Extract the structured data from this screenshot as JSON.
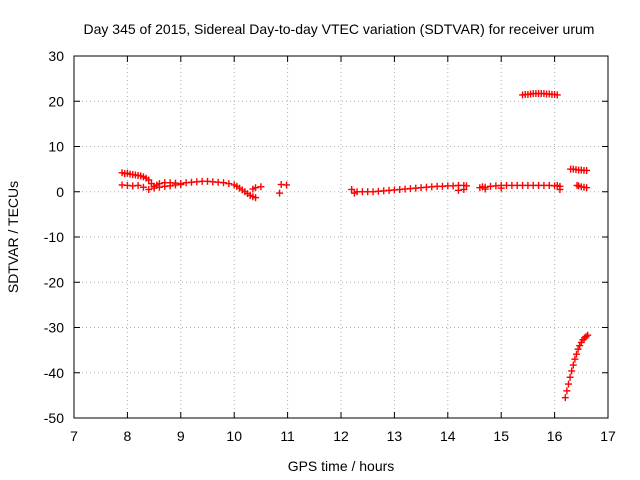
{
  "chart_data": {
    "type": "scatter",
    "title": "Day 345 of 2015, Sidereal Day-to-day VTEC variation (SDTVAR) for receiver urum",
    "xlabel": "GPS time / hours",
    "ylabel": "SDTVAR / TECUs",
    "xlim": [
      7,
      17
    ],
    "ylim": [
      -50,
      30
    ],
    "xticks": [
      "7",
      "8",
      "9",
      "10",
      "11",
      "12",
      "13",
      "14",
      "15",
      "16",
      "17"
    ],
    "yticks": [
      "30",
      "20",
      "10",
      "0",
      "-10",
      "-20",
      "-30",
      "-40",
      "-50"
    ],
    "grid": true,
    "marker": "+",
    "color": "#ff0000",
    "series": [
      {
        "x": [
          7.9,
          7.95,
          8.0,
          8.05,
          8.1,
          8.15,
          8.2,
          8.25,
          8.3,
          8.35,
          8.4,
          8.45,
          8.5,
          8.55,
          8.6,
          8.7,
          8.8,
          8.9,
          9.0,
          9.1,
          9.2,
          9.3,
          9.4,
          9.5,
          9.6,
          9.7,
          9.8,
          9.9,
          10.0,
          10.05,
          10.1,
          10.15,
          10.2,
          10.25,
          10.3,
          10.35,
          10.4,
          7.9,
          8.0,
          8.1,
          8.2,
          8.3,
          8.4,
          8.5,
          8.6,
          8.7,
          8.8,
          8.9,
          9.0,
          10.35,
          10.4,
          10.5,
          10.85,
          10.88,
          10.98
        ],
        "y": [
          4.2,
          4.0,
          4.1,
          3.9,
          3.8,
          3.7,
          3.6,
          3.5,
          3.3,
          3.0,
          2.6,
          1.8,
          1.2,
          1.5,
          1.8,
          2.0,
          2.0,
          1.9,
          1.8,
          2.0,
          2.1,
          2.2,
          2.3,
          2.3,
          2.2,
          2.1,
          2.0,
          1.8,
          1.5,
          1.2,
          0.8,
          0.4,
          0.0,
          -0.4,
          -0.8,
          -1.1,
          -1.3,
          1.5,
          1.4,
          1.3,
          1.4,
          1.0,
          0.5,
          0.8,
          1.0,
          1.2,
          1.3,
          1.5,
          1.6,
          0.6,
          0.9,
          1.1,
          -0.3,
          1.6,
          1.5
        ]
      },
      {
        "x": [
          12.2,
          12.25,
          12.3,
          12.4,
          12.5,
          12.6,
          12.7,
          12.8,
          12.9,
          13.0,
          13.1,
          13.2,
          13.3,
          13.4,
          13.5,
          13.6,
          13.7,
          13.8,
          13.9,
          14.0,
          14.1,
          14.2,
          14.3,
          14.35,
          14.3,
          14.2
        ],
        "y": [
          0.5,
          -0.3,
          0.0,
          0.0,
          0.0,
          0.0,
          0.1,
          0.2,
          0.3,
          0.4,
          0.5,
          0.6,
          0.7,
          0.8,
          0.9,
          1.0,
          1.1,
          1.2,
          1.2,
          1.3,
          1.3,
          1.4,
          1.4,
          1.3,
          0.5,
          0.3
        ]
      },
      {
        "x": [
          14.6,
          14.65,
          14.7,
          14.8,
          14.9,
          15.0,
          15.1,
          15.2,
          15.3,
          15.4,
          15.5,
          15.6,
          15.7,
          15.8,
          15.9,
          16.0,
          16.05,
          16.1,
          14.7,
          15.0,
          16.1
        ],
        "y": [
          0.9,
          1.1,
          1.0,
          1.2,
          1.3,
          1.4,
          1.4,
          1.4,
          1.4,
          1.4,
          1.4,
          1.4,
          1.4,
          1.4,
          1.4,
          1.3,
          1.4,
          1.2,
          0.6,
          0.8,
          0.5
        ]
      },
      {
        "x": [
          15.4,
          15.45,
          15.5,
          15.55,
          15.6,
          15.65,
          15.7,
          15.75,
          15.8,
          15.85,
          15.9,
          15.95,
          16.0,
          16.05
        ],
        "y": [
          21.4,
          21.5,
          21.5,
          21.6,
          21.7,
          21.7,
          21.7,
          21.7,
          21.7,
          21.6,
          21.6,
          21.5,
          21.5,
          21.4
        ]
      },
      {
        "x": [
          16.3,
          16.35,
          16.4,
          16.45,
          16.5,
          16.55,
          16.6,
          16.42,
          16.45,
          16.5,
          16.55,
          16.6
        ],
        "y": [
          5.0,
          5.0,
          4.9,
          4.8,
          4.8,
          4.7,
          4.7,
          1.4,
          1.3,
          1.1,
          1.0,
          0.9
        ]
      },
      {
        "x": [
          16.2,
          16.23,
          16.26,
          16.29,
          16.32,
          16.35,
          16.38,
          16.41,
          16.44,
          16.47,
          16.5,
          16.53,
          16.56,
          16.59,
          16.62
        ],
        "y": [
          -45.5,
          -44.0,
          -42.5,
          -41.0,
          -39.6,
          -38.3,
          -37.0,
          -35.9,
          -34.8,
          -34.0,
          -33.3,
          -32.7,
          -32.3,
          -32.0,
          -31.7
        ]
      }
    ]
  }
}
